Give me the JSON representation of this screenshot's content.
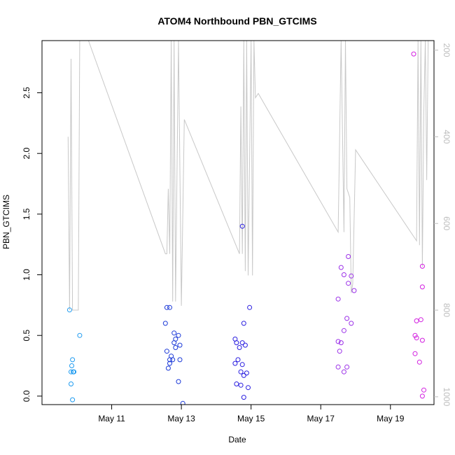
{
  "chart_data": {
    "type": "scatter",
    "title": "ATOM4 Northbound PBN_GTCIMS",
    "xlabel": "Date",
    "ylabel": "PBN_GTCIMS",
    "x_unit": "date",
    "xlim": [
      "2019-05-09 00:00",
      "2019-05-20 06:00"
    ],
    "ylim": [
      -0.07,
      2.93
    ],
    "x_ticks": [
      {
        "value": "2019-05-11 00:00",
        "label": "May 11"
      },
      {
        "value": "2019-05-13 00:00",
        "label": "May 13"
      },
      {
        "value": "2019-05-15 00:00",
        "label": "May 15"
      },
      {
        "value": "2019-05-17 00:00",
        "label": "May 17"
      },
      {
        "value": "2019-05-19 00:00",
        "label": "May 19"
      }
    ],
    "y_ticks": [
      0.0,
      0.5,
      1.0,
      1.5,
      2.0,
      2.5
    ],
    "y_tick_labels": [
      "0.0",
      "0.5",
      "1.0",
      "1.5",
      "2.0",
      "2.5"
    ],
    "secondary_y": {
      "range_top": 178,
      "range_bottom": 1018,
      "ticks": [
        200,
        400,
        600,
        800,
        1000
      ],
      "tick_labels": [
        "200",
        "400",
        "600",
        "800",
        "1000"
      ],
      "color": "#bdbdbd"
    },
    "grid": false,
    "legend": "none",
    "series": [
      {
        "color": "#1e9bf0",
        "points": [
          [
            "2019-05-09 19:00",
            0.71
          ],
          [
            "2019-05-09 20:00",
            0.2
          ],
          [
            "2019-05-09 20:30",
            0.25
          ],
          [
            "2019-05-09 21:00",
            0.3
          ],
          [
            "2019-05-09 20:00",
            0.1
          ],
          [
            "2019-05-09 21:30",
            0.2
          ],
          [
            "2019-05-09 22:00",
            0.2
          ],
          [
            "2019-05-09 21:00",
            -0.03
          ],
          [
            "2019-05-10 02:00",
            0.5
          ]
        ]
      },
      {
        "color": "#1c3ad8",
        "points": [
          [
            "2019-05-12 13:00",
            0.6
          ],
          [
            "2019-05-12 14:00",
            0.73
          ],
          [
            "2019-05-12 16:00",
            0.73
          ],
          [
            "2019-05-12 14:00",
            0.37
          ],
          [
            "2019-05-12 19:00",
            0.52
          ],
          [
            "2019-05-12 22:00",
            0.5
          ],
          [
            "2019-05-12 20:00",
            0.47
          ],
          [
            "2019-05-12 19:00",
            0.44
          ],
          [
            "2019-05-12 23:00",
            0.42
          ],
          [
            "2019-05-12 17:00",
            0.33
          ],
          [
            "2019-05-12 20:00",
            0.4
          ],
          [
            "2019-05-12 16:00",
            0.3
          ],
          [
            "2019-05-12 18:00",
            0.3
          ],
          [
            "2019-05-12 16:00",
            0.27
          ],
          [
            "2019-05-12 15:00",
            0.23
          ],
          [
            "2019-05-12 23:00",
            0.3
          ],
          [
            "2019-05-12 22:00",
            0.12
          ],
          [
            "2019-05-13 01:00",
            -0.06
          ]
        ]
      },
      {
        "color": "#2a1ee0",
        "points": [
          [
            "2019-05-14 13:00",
            0.47
          ],
          [
            "2019-05-14 14:00",
            0.44
          ],
          [
            "2019-05-14 18:00",
            0.44
          ],
          [
            "2019-05-14 16:00",
            0.4
          ],
          [
            "2019-05-14 20:00",
            0.42
          ],
          [
            "2019-05-14 23:00",
            0.73
          ],
          [
            "2019-05-14 19:00",
            0.6
          ],
          [
            "2019-05-14 18:00",
            1.4
          ],
          [
            "2019-05-14 15:00",
            0.3
          ],
          [
            "2019-05-14 13:00",
            0.27
          ],
          [
            "2019-05-14 18:00",
            0.26
          ],
          [
            "2019-05-14 17:00",
            0.2
          ],
          [
            "2019-05-14 19:00",
            0.17
          ],
          [
            "2019-05-14 21:00",
            0.19
          ],
          [
            "2019-05-14 14:00",
            0.1
          ],
          [
            "2019-05-14 17:00",
            0.09
          ],
          [
            "2019-05-14 22:00",
            0.07
          ],
          [
            "2019-05-14 19:00",
            -0.01
          ]
        ]
      },
      {
        "color": "#9b30e8",
        "points": [
          [
            "2019-05-17 14:00",
            1.06
          ],
          [
            "2019-05-17 19:00",
            1.15
          ],
          [
            "2019-05-17 16:00",
            1.0
          ],
          [
            "2019-05-17 21:00",
            0.99
          ],
          [
            "2019-05-17 19:00",
            0.93
          ],
          [
            "2019-05-17 23:00",
            0.87
          ],
          [
            "2019-05-17 12:00",
            0.8
          ],
          [
            "2019-05-17 18:00",
            0.64
          ],
          [
            "2019-05-17 21:00",
            0.6
          ],
          [
            "2019-05-17 16:00",
            0.54
          ],
          [
            "2019-05-17 12:00",
            0.45
          ],
          [
            "2019-05-17 14:00",
            0.44
          ],
          [
            "2019-05-17 13:00",
            0.37
          ],
          [
            "2019-05-17 12:00",
            0.24
          ],
          [
            "2019-05-17 18:00",
            0.24
          ],
          [
            "2019-05-17 16:00",
            0.2
          ]
        ]
      },
      {
        "color": "#d21ee0",
        "points": [
          [
            "2019-05-19 16:00",
            2.82
          ],
          [
            "2019-05-19 22:00",
            1.07
          ],
          [
            "2019-05-19 22:00",
            0.9
          ],
          [
            "2019-05-19 21:00",
            0.63
          ],
          [
            "2019-05-19 18:00",
            0.62
          ],
          [
            "2019-05-19 17:00",
            0.5
          ],
          [
            "2019-05-19 18:00",
            0.48
          ],
          [
            "2019-05-19 22:00",
            0.46
          ],
          [
            "2019-05-19 17:00",
            0.35
          ],
          [
            "2019-05-19 20:00",
            0.28
          ],
          [
            "2019-05-19 23:00",
            0.05
          ],
          [
            "2019-05-19 22:00",
            0.0
          ]
        ]
      }
    ],
    "overlay_line": {
      "color": "#c8c8c8",
      "axis": "secondary",
      "points": [
        [
          "2019-05-09 18:00",
          400
        ],
        [
          "2019-05-09 19:00",
          800
        ],
        [
          "2019-05-09 20:00",
          220
        ],
        [
          "2019-05-09 21:00",
          800
        ],
        [
          "2019-05-09 22:00",
          800
        ],
        [
          "2019-05-10 01:00",
          800
        ],
        [
          "2019-05-10 02:00",
          178
        ],
        [
          "2019-05-10 08:00",
          178
        ],
        [
          "2019-05-12 13:00",
          670
        ],
        [
          "2019-05-12 14:00",
          670
        ],
        [
          "2019-05-12 15:00",
          520
        ],
        [
          "2019-05-12 16:00",
          670
        ],
        [
          "2019-05-12 17:00",
          178
        ],
        [
          "2019-05-12 18:00",
          780
        ],
        [
          "2019-05-12 19:00",
          178
        ],
        [
          "2019-05-12 20:00",
          780
        ],
        [
          "2019-05-12 22:00",
          178
        ],
        [
          "2019-05-13 00:00",
          790
        ],
        [
          "2019-05-13 02:00",
          360
        ],
        [
          "2019-05-14 16:00",
          670
        ],
        [
          "2019-05-14 17:00",
          330
        ],
        [
          "2019-05-14 18:00",
          670
        ],
        [
          "2019-05-14 19:00",
          178
        ],
        [
          "2019-05-14 20:00",
          710
        ],
        [
          "2019-05-14 21:00",
          178
        ],
        [
          "2019-05-14 22:00",
          720
        ],
        [
          "2019-05-15 00:00",
          178
        ],
        [
          "2019-05-15 01:00",
          720
        ],
        [
          "2019-05-15 02:00",
          178
        ],
        [
          "2019-05-15 03:00",
          310
        ],
        [
          "2019-05-15 05:00",
          300
        ],
        [
          "2019-05-17 12:00",
          620
        ],
        [
          "2019-05-17 14:00",
          178
        ],
        [
          "2019-05-17 16:00",
          620
        ],
        [
          "2019-05-17 17:00",
          178
        ],
        [
          "2019-05-17 18:00",
          520
        ],
        [
          "2019-05-17 20:00",
          540
        ],
        [
          "2019-05-17 21:00",
          760
        ],
        [
          "2019-05-17 22:00",
          740
        ],
        [
          "2019-05-18 00:00",
          430
        ],
        [
          "2019-05-18 02:00",
          440
        ],
        [
          "2019-05-19 18:00",
          640
        ],
        [
          "2019-05-19 19:00",
          178
        ],
        [
          "2019-05-19 20:00",
          650
        ],
        [
          "2019-05-19 21:00",
          178
        ],
        [
          "2019-05-19 22:00",
          700
        ],
        [
          "2019-05-19 23:00",
          340
        ],
        [
          "2019-05-20 00:00",
          178
        ],
        [
          "2019-05-20 01:00",
          500
        ],
        [
          "2019-05-20 02:00",
          178
        ]
      ]
    }
  }
}
